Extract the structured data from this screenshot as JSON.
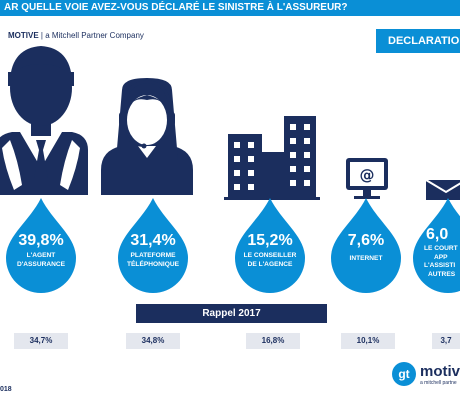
{
  "header": {
    "question": "AR QUELLE VOIE AVEZ-VOUS DÉCLARÉ LE SINISTRE À L'ASSUREUR?",
    "brand": "MOTIVE",
    "brand_suffix": " | a Mitchell Partner Company",
    "section_label": "DECLARATION"
  },
  "rappel_label": "Rappel 2017",
  "footer": {
    "year": "018",
    "logo_mark": "gt",
    "logo_text": "motiv",
    "logo_sub": "a mitchell partne"
  },
  "colors": {
    "accent": "#0a8fd6",
    "navy": "#1b2e5e",
    "pale": "#e4e7ee"
  },
  "chart_data": {
    "type": "infographic",
    "categories": [
      "L'AGENT D'ASSURANCE",
      "PLATEFORME TÉLÉPHONIQUE",
      "LE CONSEILLER DE L'AGENCE",
      "INTERNET",
      "LE COURTIER APP L'ASSISTI AUTRES"
    ],
    "display_labels": [
      [
        "L'AGENT",
        "D'ASSURANCE"
      ],
      [
        "PLATEFORME",
        "TÉLÉPHONIQUE"
      ],
      [
        "LE CONSEILLER",
        "DE L'AGENCE"
      ],
      [
        "INTERNET"
      ],
      [
        "LE COURT",
        "APP",
        "L'ASSISTI",
        "AUTRES"
      ]
    ],
    "icons": [
      "businessman-icon",
      "call-center-agent-icon",
      "office-buildings-icon",
      "computer-email-icon",
      "envelope-icon"
    ],
    "series": [
      {
        "name": "",
        "values": [
          39.8,
          31.4,
          15.2,
          7.6,
          6.0
        ]
      },
      {
        "name": "Rappel 2017",
        "values": [
          34.7,
          34.8,
          16.8,
          10.1,
          3.7
        ]
      }
    ],
    "value_text_current": [
      "39,8%",
      "31,4%",
      "15,2%",
      "7,6%",
      "6,0"
    ],
    "value_text_2017": [
      "34,7%",
      "34,8%",
      "16,8%",
      "10,1%",
      "3,7"
    ]
  }
}
